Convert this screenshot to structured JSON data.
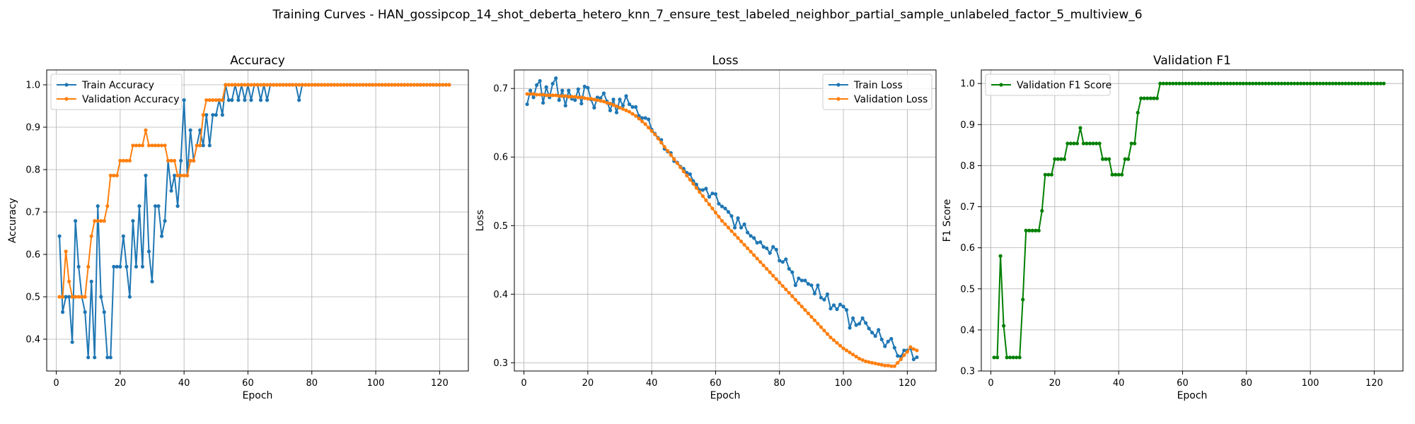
{
  "figure": {
    "suptitle": "Training Curves - HAN_gossipcop_14_shot_deberta_hetero_knn_7_ensure_test_labeled_neighbor_partial_sample_unlabeled_factor_5_multiview_6"
  },
  "chart_data": [
    {
      "type": "line",
      "title": "Accuracy",
      "xlabel": "Epoch",
      "ylabel": "Accuracy",
      "xlim": [
        -3,
        129
      ],
      "ylim": [
        0.325,
        1.035
      ],
      "xticks": [
        0,
        20,
        40,
        60,
        80,
        100,
        120
      ],
      "yticks": [
        0.4,
        0.5,
        0.6,
        0.7,
        0.8,
        0.9,
        1.0
      ],
      "ytick_labels": [
        "0.4",
        "0.5",
        "0.6",
        "0.7",
        "0.8",
        "0.9",
        "1.0"
      ],
      "grid": true,
      "legend_position": "upper-left",
      "series": [
        {
          "name": "Train Accuracy",
          "color": "#1f77b4",
          "x_start": 1,
          "values": [
            0.643,
            0.464,
            0.5,
            0.5,
            0.393,
            0.679,
            0.571,
            0.5,
            0.464,
            0.357,
            0.536,
            0.357,
            0.714,
            0.5,
            0.464,
            0.357,
            0.357,
            0.571,
            0.571,
            0.571,
            0.643,
            0.571,
            0.5,
            0.679,
            0.571,
            0.714,
            0.571,
            0.786,
            0.607,
            0.536,
            0.714,
            0.714,
            0.643,
            0.679,
            0.821,
            0.75,
            0.786,
            0.714,
            0.821,
            0.964,
            0.786,
            0.893,
            0.821,
            0.857,
            0.893,
            0.857,
            0.929,
            0.857,
            0.929,
            0.929,
            0.964,
            0.929,
            1.0,
            0.964,
            0.964,
            1.0,
            0.964,
            1.0,
            0.964,
            1.0,
            0.964,
            1.0,
            1.0,
            0.964,
            1.0,
            0.964,
            1.0,
            1.0,
            1.0,
            1.0,
            1.0,
            1.0,
            1.0,
            1.0,
            1.0,
            0.964,
            1.0,
            1.0,
            1.0,
            1.0,
            1.0,
            1.0,
            1.0,
            1.0,
            1.0,
            1.0,
            1.0,
            1.0,
            1.0,
            1.0,
            1.0,
            1.0,
            1.0,
            1.0,
            1.0,
            1.0,
            1.0,
            1.0,
            1.0,
            1.0,
            1.0,
            1.0,
            1.0,
            1.0,
            1.0,
            1.0,
            1.0,
            1.0,
            1.0,
            1.0,
            1.0,
            1.0,
            1.0,
            1.0,
            1.0,
            1.0,
            1.0,
            1.0,
            1.0,
            1.0,
            1.0,
            1.0,
            1.0
          ]
        },
        {
          "name": "Validation Accuracy",
          "color": "#ff7f0e",
          "x_start": 1,
          "values": [
            0.5,
            0.5,
            0.607,
            0.536,
            0.5,
            0.5,
            0.5,
            0.5,
            0.5,
            0.571,
            0.643,
            0.679,
            0.679,
            0.679,
            0.679,
            0.714,
            0.786,
            0.786,
            0.786,
            0.821,
            0.821,
            0.821,
            0.821,
            0.857,
            0.857,
            0.857,
            0.857,
            0.893,
            0.857,
            0.857,
            0.857,
            0.857,
            0.857,
            0.857,
            0.821,
            0.821,
            0.821,
            0.786,
            0.786,
            0.786,
            0.786,
            0.821,
            0.821,
            0.857,
            0.857,
            0.929,
            0.964,
            0.964,
            0.964,
            0.964,
            0.964,
            0.964,
            1.0,
            1.0,
            1.0,
            1.0,
            1.0,
            1.0,
            1.0,
            1.0,
            1.0,
            1.0,
            1.0,
            1.0,
            1.0,
            1.0,
            1.0,
            1.0,
            1.0,
            1.0,
            1.0,
            1.0,
            1.0,
            1.0,
            1.0,
            1.0,
            1.0,
            1.0,
            1.0,
            1.0,
            1.0,
            1.0,
            1.0,
            1.0,
            1.0,
            1.0,
            1.0,
            1.0,
            1.0,
            1.0,
            1.0,
            1.0,
            1.0,
            1.0,
            1.0,
            1.0,
            1.0,
            1.0,
            1.0,
            1.0,
            1.0,
            1.0,
            1.0,
            1.0,
            1.0,
            1.0,
            1.0,
            1.0,
            1.0,
            1.0,
            1.0,
            1.0,
            1.0,
            1.0,
            1.0,
            1.0,
            1.0,
            1.0,
            1.0,
            1.0,
            1.0,
            1.0,
            1.0
          ]
        }
      ]
    },
    {
      "type": "line",
      "title": "Loss",
      "xlabel": "Epoch",
      "ylabel": "Loss",
      "xlim": [
        -3,
        129
      ],
      "ylim": [
        0.288,
        0.727
      ],
      "xticks": [
        0,
        20,
        40,
        60,
        80,
        100,
        120
      ],
      "yticks": [
        0.3,
        0.4,
        0.5,
        0.6,
        0.7
      ],
      "ytick_labels": [
        "0.3",
        "0.4",
        "0.5",
        "0.6",
        "0.7"
      ],
      "grid": true,
      "legend_position": "upper-right",
      "series": [
        {
          "name": "Train Loss",
          "color": "#1f77b4",
          "x_start": 1,
          "values": [
            0.677,
            0.697,
            0.687,
            0.705,
            0.711,
            0.679,
            0.702,
            0.687,
            0.707,
            0.715,
            0.683,
            0.697,
            0.675,
            0.697,
            0.685,
            0.683,
            0.699,
            0.678,
            0.703,
            0.701,
            0.684,
            0.672,
            0.687,
            0.686,
            0.693,
            0.681,
            0.668,
            0.684,
            0.665,
            0.684,
            0.675,
            0.689,
            0.677,
            0.673,
            0.673,
            0.66,
            0.657,
            0.657,
            0.655,
            0.64,
            0.634,
            0.628,
            0.625,
            0.612,
            0.608,
            0.606,
            0.594,
            0.592,
            0.586,
            0.583,
            0.577,
            0.575,
            0.565,
            0.56,
            0.552,
            0.552,
            0.554,
            0.542,
            0.547,
            0.546,
            0.532,
            0.528,
            0.525,
            0.52,
            0.514,
            0.497,
            0.511,
            0.497,
            0.502,
            0.49,
            0.485,
            0.482,
            0.475,
            0.476,
            0.469,
            0.467,
            0.46,
            0.469,
            0.465,
            0.449,
            0.447,
            0.451,
            0.437,
            0.432,
            0.413,
            0.423,
            0.42,
            0.42,
            0.415,
            0.413,
            0.401,
            0.413,
            0.395,
            0.392,
            0.4,
            0.379,
            0.384,
            0.378,
            0.385,
            0.382,
            0.377,
            0.351,
            0.365,
            0.355,
            0.357,
            0.365,
            0.358,
            0.35,
            0.344,
            0.339,
            0.348,
            0.334,
            0.324,
            0.331,
            0.335,
            0.322,
            0.31,
            0.309,
            0.318,
            0.318,
            0.321,
            0.305,
            0.308
          ]
        },
        {
          "name": "Validation Loss",
          "color": "#ff7f0e",
          "x_start": 1,
          "values": [
            0.692,
            0.692,
            0.692,
            0.691,
            0.691,
            0.691,
            0.69,
            0.69,
            0.69,
            0.69,
            0.689,
            0.689,
            0.689,
            0.688,
            0.688,
            0.688,
            0.687,
            0.687,
            0.686,
            0.685,
            0.685,
            0.684,
            0.683,
            0.682,
            0.681,
            0.679,
            0.678,
            0.676,
            0.674,
            0.672,
            0.67,
            0.668,
            0.666,
            0.663,
            0.66,
            0.656,
            0.652,
            0.648,
            0.643,
            0.638,
            0.633,
            0.627,
            0.621,
            0.615,
            0.609,
            0.603,
            0.597,
            0.591,
            0.585,
            0.579,
            0.573,
            0.567,
            0.561,
            0.555,
            0.549,
            0.543,
            0.537,
            0.531,
            0.525,
            0.519,
            0.513,
            0.507,
            0.502,
            0.497,
            0.492,
            0.487,
            0.482,
            0.477,
            0.472,
            0.467,
            0.462,
            0.457,
            0.452,
            0.447,
            0.442,
            0.437,
            0.432,
            0.427,
            0.422,
            0.417,
            0.412,
            0.407,
            0.402,
            0.397,
            0.392,
            0.387,
            0.382,
            0.377,
            0.372,
            0.367,
            0.362,
            0.357,
            0.352,
            0.347,
            0.342,
            0.337,
            0.333,
            0.329,
            0.325,
            0.321,
            0.318,
            0.315,
            0.312,
            0.309,
            0.306,
            0.304,
            0.302,
            0.301,
            0.3,
            0.299,
            0.298,
            0.297,
            0.296,
            0.296,
            0.295,
            0.295,
            0.3,
            0.305,
            0.311,
            0.316,
            0.323,
            0.32,
            0.318
          ]
        }
      ]
    },
    {
      "type": "line",
      "title": "Validation F1",
      "xlabel": "Epoch",
      "ylabel": "F1 Score",
      "xlim": [
        -3,
        129
      ],
      "ylim": [
        0.3,
        1.033
      ],
      "xticks": [
        0,
        20,
        40,
        60,
        80,
        100,
        120
      ],
      "yticks": [
        0.3,
        0.4,
        0.5,
        0.6,
        0.7,
        0.8,
        0.9,
        1.0
      ],
      "ytick_labels": [
        "0.3",
        "0.4",
        "0.5",
        "0.6",
        "0.7",
        "0.8",
        "0.9",
        "1.0"
      ],
      "grid": true,
      "legend_position": "upper-left",
      "series": [
        {
          "name": "Validation F1 Score",
          "color": "#008000",
          "x_start": 1,
          "values": [
            0.333,
            0.333,
            0.58,
            0.41,
            0.333,
            0.333,
            0.333,
            0.333,
            0.333,
            0.474,
            0.642,
            0.642,
            0.642,
            0.642,
            0.642,
            0.69,
            0.778,
            0.778,
            0.778,
            0.816,
            0.816,
            0.816,
            0.816,
            0.854,
            0.854,
            0.854,
            0.854,
            0.892,
            0.854,
            0.854,
            0.854,
            0.854,
            0.854,
            0.854,
            0.816,
            0.816,
            0.816,
            0.778,
            0.778,
            0.778,
            0.778,
            0.816,
            0.816,
            0.854,
            0.854,
            0.929,
            0.964,
            0.964,
            0.964,
            0.964,
            0.964,
            0.964,
            1.0,
            1.0,
            1.0,
            1.0,
            1.0,
            1.0,
            1.0,
            1.0,
            1.0,
            1.0,
            1.0,
            1.0,
            1.0,
            1.0,
            1.0,
            1.0,
            1.0,
            1.0,
            1.0,
            1.0,
            1.0,
            1.0,
            1.0,
            1.0,
            1.0,
            1.0,
            1.0,
            1.0,
            1.0,
            1.0,
            1.0,
            1.0,
            1.0,
            1.0,
            1.0,
            1.0,
            1.0,
            1.0,
            1.0,
            1.0,
            1.0,
            1.0,
            1.0,
            1.0,
            1.0,
            1.0,
            1.0,
            1.0,
            1.0,
            1.0,
            1.0,
            1.0,
            1.0,
            1.0,
            1.0,
            1.0,
            1.0,
            1.0,
            1.0,
            1.0,
            1.0,
            1.0,
            1.0,
            1.0,
            1.0,
            1.0,
            1.0,
            1.0,
            1.0,
            1.0,
            1.0
          ]
        }
      ]
    }
  ]
}
